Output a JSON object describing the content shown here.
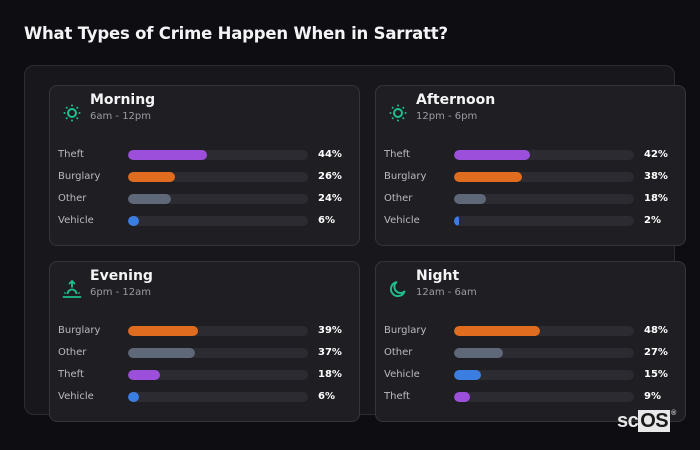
{
  "title": "What Types of Crime Happen When in Sarratt?",
  "colors": {
    "theft": "#9b4fdb",
    "burglary": "#e06c1f",
    "other": "#5f6879",
    "vehicle": "#3b7de0",
    "icon_accent": "#1fbf8f"
  },
  "cards": [
    {
      "name": "Morning",
      "range": "6am - 12pm",
      "icon": "sun-icon",
      "rows": [
        {
          "label": "Theft",
          "value": 44,
          "pct": "44%",
          "color": "#9b4fdb"
        },
        {
          "label": "Burglary",
          "value": 26,
          "pct": "26%",
          "color": "#e06c1f"
        },
        {
          "label": "Other",
          "value": 24,
          "pct": "24%",
          "color": "#5f6879"
        },
        {
          "label": "Vehicle",
          "value": 6,
          "pct": "6%",
          "color": "#3b7de0"
        }
      ]
    },
    {
      "name": "Afternoon",
      "range": "12pm - 6pm",
      "icon": "sun-icon",
      "rows": [
        {
          "label": "Theft",
          "value": 42,
          "pct": "42%",
          "color": "#9b4fdb"
        },
        {
          "label": "Burglary",
          "value": 38,
          "pct": "38%",
          "color": "#e06c1f"
        },
        {
          "label": "Other",
          "value": 18,
          "pct": "18%",
          "color": "#5f6879"
        },
        {
          "label": "Vehicle",
          "value": 2,
          "pct": "2%",
          "color": "#3b7de0"
        }
      ]
    },
    {
      "name": "Evening",
      "range": "6pm - 12am",
      "icon": "sunset-icon",
      "rows": [
        {
          "label": "Burglary",
          "value": 39,
          "pct": "39%",
          "color": "#e06c1f"
        },
        {
          "label": "Other",
          "value": 37,
          "pct": "37%",
          "color": "#5f6879"
        },
        {
          "label": "Theft",
          "value": 18,
          "pct": "18%",
          "color": "#9b4fdb"
        },
        {
          "label": "Vehicle",
          "value": 6,
          "pct": "6%",
          "color": "#3b7de0"
        }
      ]
    },
    {
      "name": "Night",
      "range": "12am - 6am",
      "icon": "moon-icon",
      "rows": [
        {
          "label": "Burglary",
          "value": 48,
          "pct": "48%",
          "color": "#e06c1f"
        },
        {
          "label": "Other",
          "value": 27,
          "pct": "27%",
          "color": "#5f6879"
        },
        {
          "label": "Vehicle",
          "value": 15,
          "pct": "15%",
          "color": "#3b7de0"
        },
        {
          "label": "Theft",
          "value": 9,
          "pct": "9%",
          "color": "#9b4fdb"
        }
      ]
    }
  ],
  "logo": {
    "sc": "sc",
    "os": "OS",
    "reg": "®"
  },
  "chart_data": [
    {
      "type": "bar",
      "title": "Morning",
      "subtitle": "6am - 12pm",
      "categories": [
        "Theft",
        "Burglary",
        "Other",
        "Vehicle"
      ],
      "values": [
        44,
        26,
        24,
        6
      ],
      "unit": "%",
      "orientation": "horizontal",
      "xlim": [
        0,
        100
      ]
    },
    {
      "type": "bar",
      "title": "Afternoon",
      "subtitle": "12pm - 6pm",
      "categories": [
        "Theft",
        "Burglary",
        "Other",
        "Vehicle"
      ],
      "values": [
        42,
        38,
        18,
        2
      ],
      "unit": "%",
      "orientation": "horizontal",
      "xlim": [
        0,
        100
      ]
    },
    {
      "type": "bar",
      "title": "Evening",
      "subtitle": "6pm - 12am",
      "categories": [
        "Burglary",
        "Other",
        "Theft",
        "Vehicle"
      ],
      "values": [
        39,
        37,
        18,
        6
      ],
      "unit": "%",
      "orientation": "horizontal",
      "xlim": [
        0,
        100
      ]
    },
    {
      "type": "bar",
      "title": "Night",
      "subtitle": "12am - 6am",
      "categories": [
        "Burglary",
        "Other",
        "Vehicle",
        "Theft"
      ],
      "values": [
        48,
        27,
        15,
        9
      ],
      "unit": "%",
      "orientation": "horizontal",
      "xlim": [
        0,
        100
      ]
    }
  ]
}
